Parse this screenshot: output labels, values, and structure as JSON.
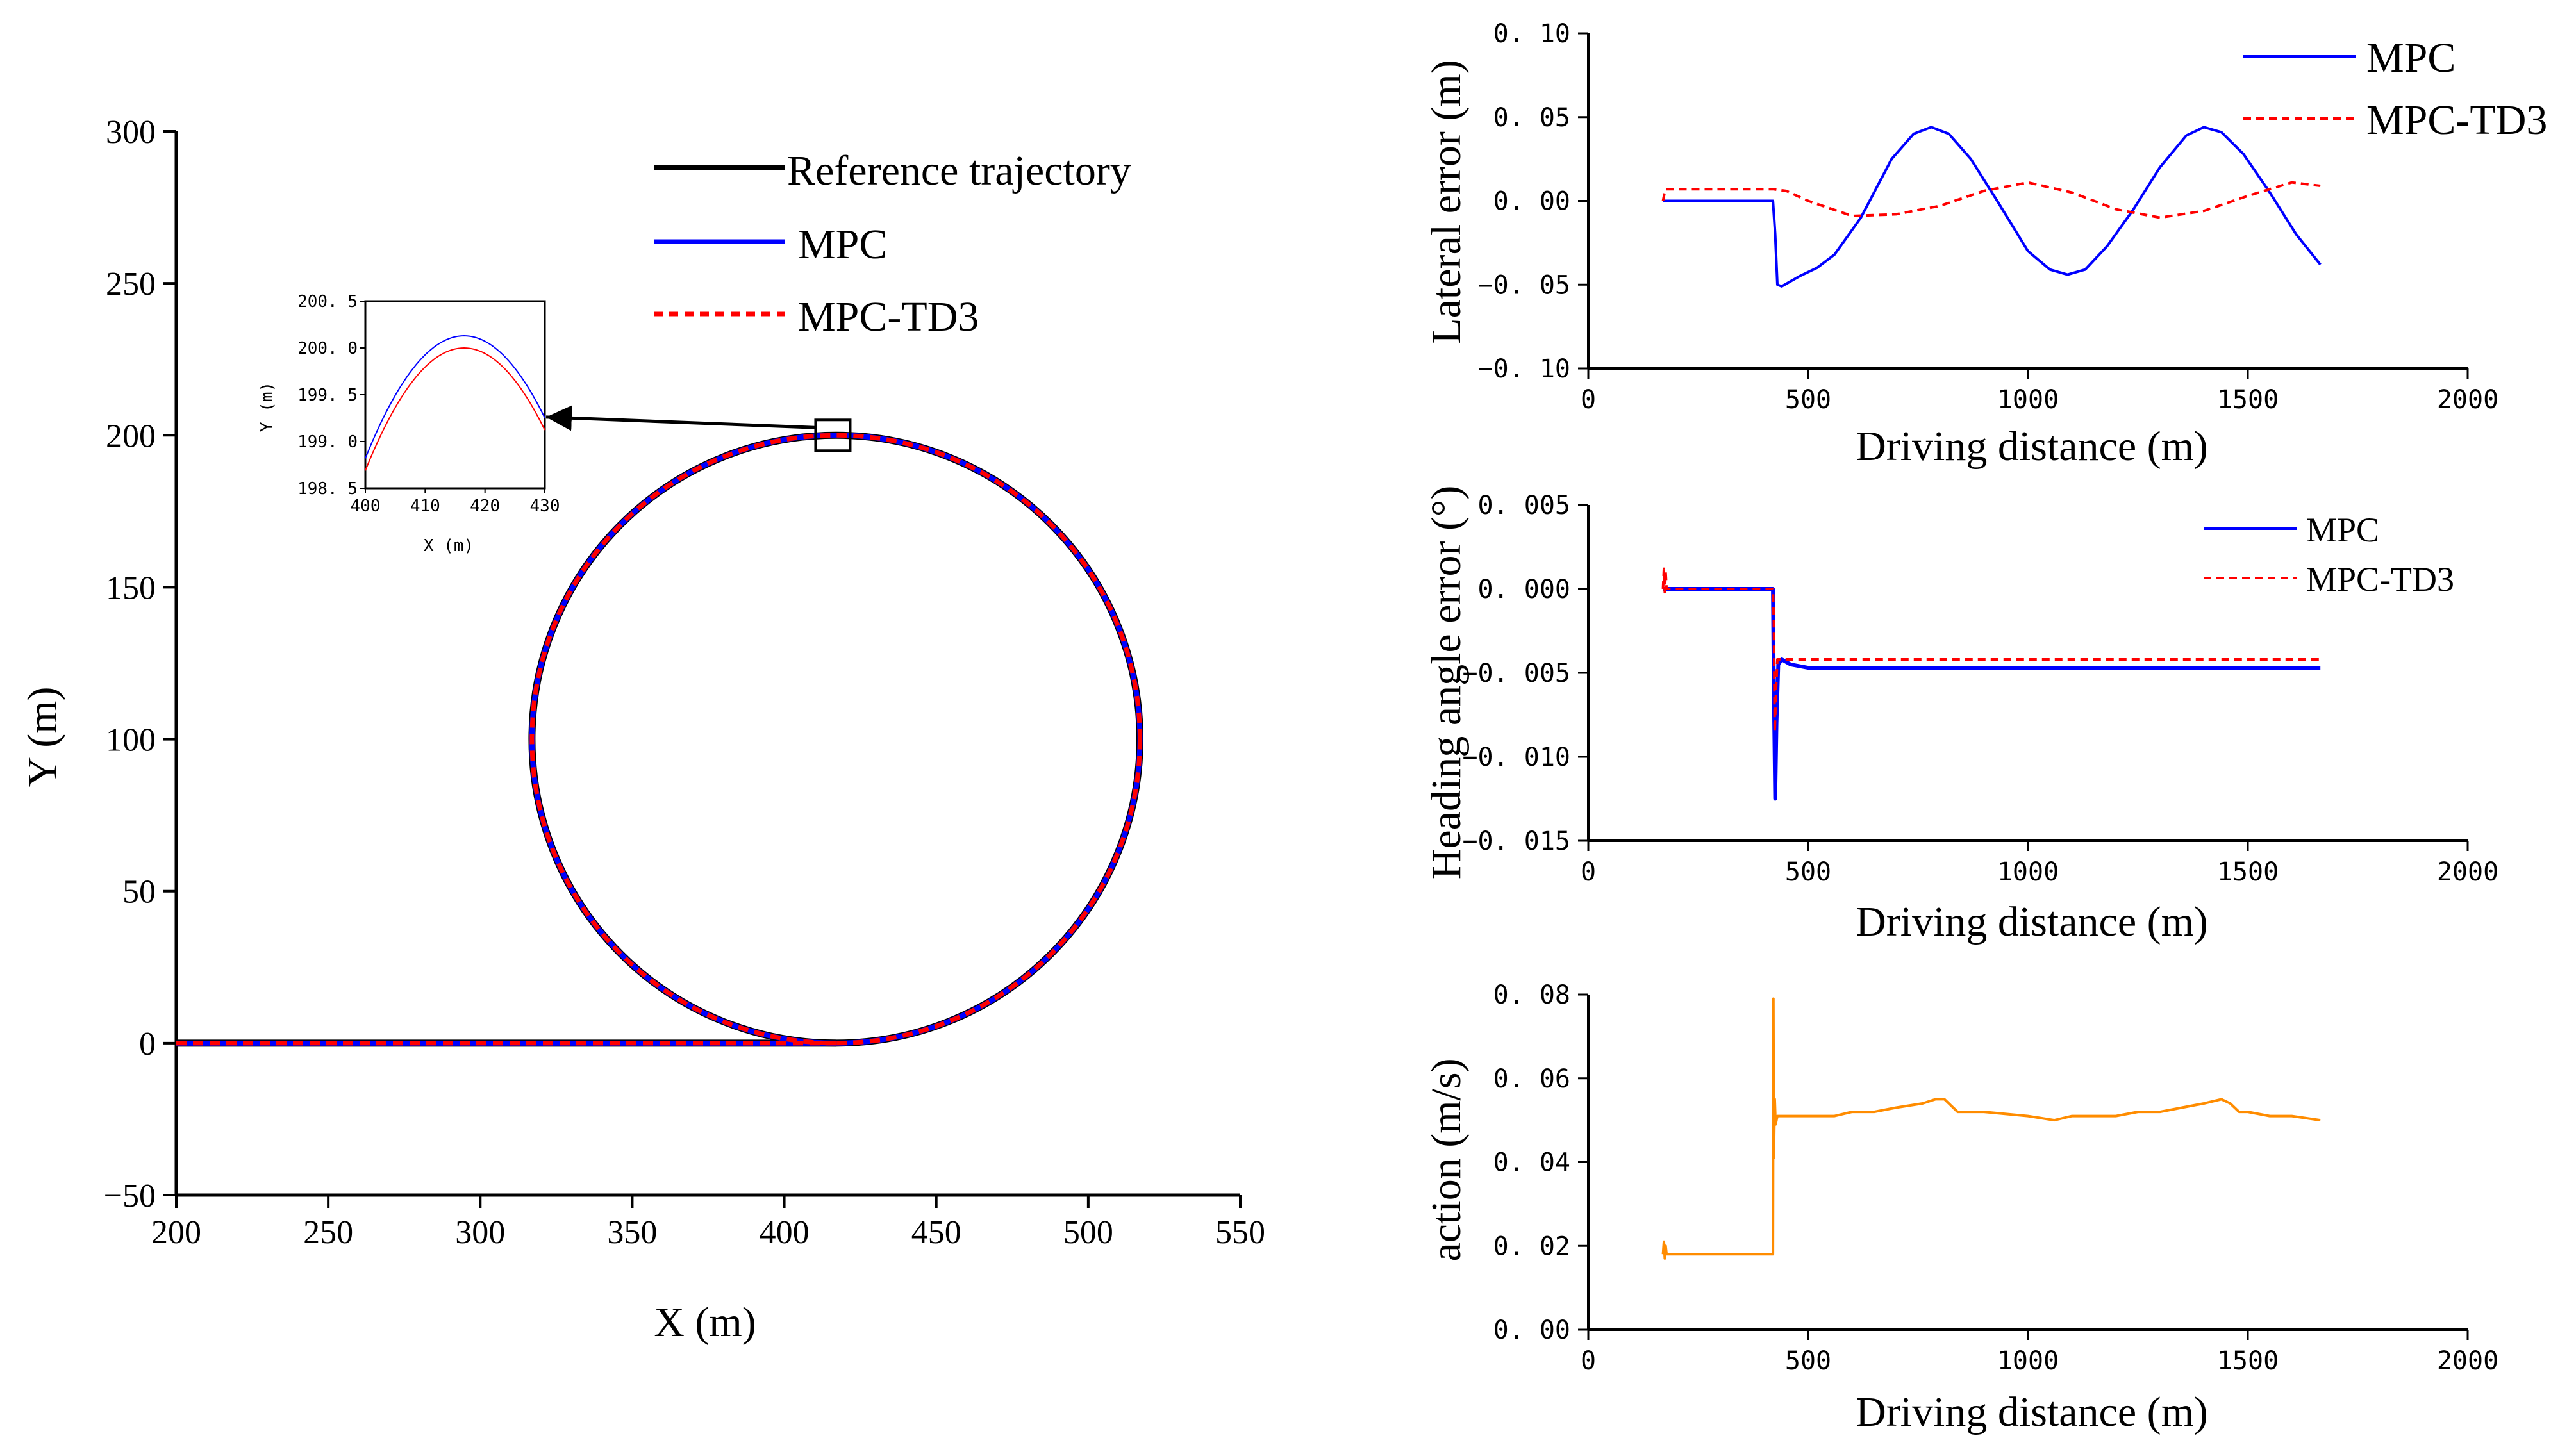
{
  "colors": {
    "mpc": "#0000ff",
    "td3": "#ff0000",
    "reference": "#000000",
    "action": "#ff8c00",
    "axis": "#000000"
  },
  "chart_data": [
    {
      "id": "trajectory",
      "type": "line",
      "title": "",
      "xlabel": "X (m)",
      "ylabel": "Y (m)",
      "xlim": [
        200,
        550
      ],
      "ylim": [
        -50,
        300
      ],
      "xticks": [
        "200",
        "250",
        "300",
        "350",
        "400",
        "450",
        "500",
        "550"
      ],
      "yticks": [
        "−50",
        "0",
        "50",
        "100",
        "150",
        "200",
        "250",
        "300"
      ],
      "legend": [
        "Reference trajectory",
        "MPC",
        "MPC-TD3"
      ],
      "series": [
        {
          "name": "Reference trajectory",
          "straight": {
            "x": [
              200,
              417
            ],
            "y": [
              0,
              0
            ]
          },
          "circle": {
            "cx": 417,
            "cy": 100,
            "r": 100
          }
        },
        {
          "name": "MPC",
          "straight": {
            "x": [
              200,
              417
            ],
            "y": [
              0,
              0
            ]
          },
          "circle": {
            "cx": 417,
            "cy": 100,
            "r": 100
          }
        },
        {
          "name": "MPC-TD3",
          "straight": {
            "x": [
              200,
              417
            ],
            "y": [
              0,
              0
            ]
          },
          "circle": {
            "cx": 417,
            "cy": 100,
            "r": 100
          }
        }
      ],
      "inset": {
        "xlabel": "X (m)",
        "ylabel": "Y (m)",
        "xlim": [
          400,
          430
        ],
        "ylim": [
          198.5,
          200.5
        ],
        "xticks": [
          "400",
          "410",
          "420",
          "430"
        ],
        "yticks": [
          "198. 5",
          "199. 0",
          "199. 5",
          "200. 0",
          "200. 5"
        ],
        "series": [
          {
            "name": "MPC",
            "peak_x": 416.5,
            "peak_y": 200.13,
            "y_at_400": 198.82
          },
          {
            "name": "MPC-TD3",
            "peak_x": 416.5,
            "peak_y": 200.0,
            "y_at_400": 198.69
          }
        ]
      }
    },
    {
      "id": "lateral",
      "type": "line",
      "xlabel": "Driving distance (m)",
      "ylabel": "Lateral error (m)",
      "xlim": [
        0,
        2000
      ],
      "ylim": [
        -0.1,
        0.1
      ],
      "xticks": [
        "0",
        "500",
        "1000",
        "1500",
        "2000"
      ],
      "yticks": [
        "−0. 10",
        "−0. 05",
        "0. 00",
        "0. 05",
        "0. 10"
      ],
      "legend": [
        "MPC",
        "MPC-TD3"
      ],
      "series": [
        {
          "name": "MPC",
          "x": [
            170,
            420,
            425,
            430,
            440,
            460,
            480,
            520,
            560,
            620,
            690,
            740,
            780,
            820,
            870,
            930,
            1000,
            1050,
            1090,
            1130,
            1180,
            1240,
            1300,
            1360,
            1400,
            1440,
            1490,
            1550,
            1610,
            1665
          ],
          "y": [
            0.0,
            0.0,
            -0.02,
            -0.05,
            -0.051,
            -0.048,
            -0.045,
            -0.04,
            -0.032,
            -0.01,
            0.025,
            0.04,
            0.044,
            0.04,
            0.025,
            0.0,
            -0.03,
            -0.041,
            -0.044,
            -0.041,
            -0.027,
            -0.005,
            0.02,
            0.039,
            0.044,
            0.041,
            0.028,
            0.005,
            -0.02,
            -0.038
          ]
        },
        {
          "name": "MPC-TD3",
          "x": [
            170,
            175,
            420,
            450,
            500,
            600,
            700,
            800,
            900,
            1000,
            1100,
            1200,
            1300,
            1400,
            1500,
            1600,
            1665
          ],
          "y": [
            0.0,
            0.007,
            0.007,
            0.006,
            0.0,
            -0.009,
            -0.008,
            -0.003,
            0.006,
            0.011,
            0.005,
            -0.005,
            -0.01,
            -0.006,
            0.003,
            0.011,
            0.009
          ]
        }
      ]
    },
    {
      "id": "heading",
      "type": "line",
      "xlabel": "Driving distance (m)",
      "ylabel": "Heading angle error (°)",
      "xlim": [
        0,
        2000
      ],
      "ylim": [
        -0.015,
        0.005
      ],
      "xticks": [
        "0",
        "500",
        "1000",
        "1500",
        "2000"
      ],
      "yticks": [
        "−0. 015",
        "−0. 010",
        "−0. 005",
        "0. 000",
        "0. 005"
      ],
      "legend": [
        "MPC",
        "MPC-TD3"
      ],
      "series": [
        {
          "name": "MPC",
          "x": [
            170,
            420,
            422,
            425,
            428,
            432,
            440,
            460,
            500,
            550,
            700,
            1000,
            1300,
            1665
          ],
          "y": [
            0.0,
            0.0,
            -0.006,
            -0.0125,
            -0.008,
            -0.0045,
            -0.0042,
            -0.0045,
            -0.0047,
            -0.0047,
            -0.0047,
            -0.0047,
            -0.0047,
            -0.0047
          ]
        },
        {
          "name": "MPC-TD3",
          "x": [
            170,
            172,
            174,
            176,
            178,
            420,
            422,
            424,
            427,
            430,
            440,
            460,
            500,
            800,
            1200,
            1665
          ],
          "y": [
            0.0,
            0.0012,
            -0.0002,
            0.001,
            0.0,
            0.0,
            -0.002,
            -0.0085,
            -0.006,
            -0.0042,
            -0.0042,
            -0.0042,
            -0.0042,
            -0.0042,
            -0.0042,
            -0.0042
          ]
        }
      ]
    },
    {
      "id": "action",
      "type": "line",
      "xlabel": "Driving distance (m)",
      "ylabel": "action (m/s)",
      "xlim": [
        0,
        2000
      ],
      "ylim": [
        0,
        0.08
      ],
      "xticks": [
        "0",
        "500",
        "1000",
        "1500",
        "2000"
      ],
      "yticks": [
        "0. 00",
        "0. 02",
        "0. 04",
        "0. 06",
        "0. 08"
      ],
      "series": [
        {
          "name": "action",
          "x": [
            170,
            172,
            174,
            176,
            178,
            182,
            420,
            421,
            422,
            424,
            426,
            430,
            440,
            500,
            560,
            600,
            650,
            700,
            760,
            790,
            810,
            840,
            900,
            1000,
            1060,
            1100,
            1150,
            1200,
            1250,
            1300,
            1350,
            1400,
            1440,
            1460,
            1480,
            1500,
            1550,
            1600,
            1665
          ],
          "y": [
            0.018,
            0.021,
            0.017,
            0.02,
            0.018,
            0.018,
            0.018,
            0.079,
            0.041,
            0.055,
            0.049,
            0.051,
            0.051,
            0.051,
            0.051,
            0.052,
            0.052,
            0.053,
            0.054,
            0.055,
            0.055,
            0.052,
            0.052,
            0.051,
            0.05,
            0.051,
            0.051,
            0.051,
            0.052,
            0.052,
            0.053,
            0.054,
            0.055,
            0.054,
            0.052,
            0.052,
            0.051,
            0.051,
            0.05
          ]
        }
      ]
    }
  ]
}
